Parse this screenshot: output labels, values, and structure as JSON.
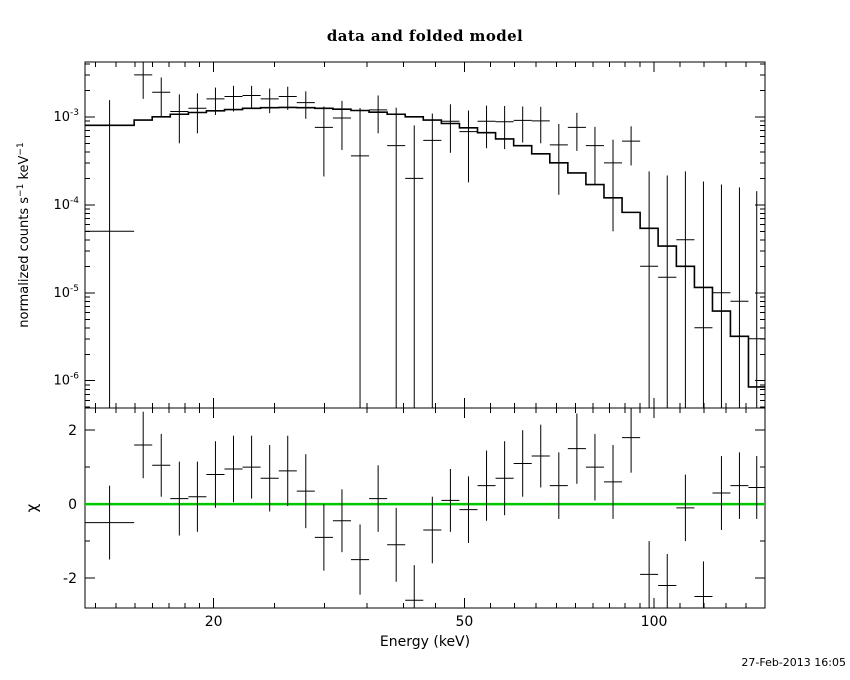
{
  "labels": {
    "ylabel_top_pre": "normalized counts s",
    "ylabel_top_sup1": "−1",
    "ylabel_top_mid": " keV",
    "ylabel_top_sup2": "−1",
    "ylabel_bottom": "χ"
  },
  "timestamp": "27-Feb-2013 16:05",
  "chart_data": {
    "type": "line",
    "title": "data and folded model",
    "xlabel": "Energy (keV)",
    "xscale": "log",
    "xlim": [
      12.5,
      150
    ],
    "x_major_ticks": [
      20,
      50,
      100
    ],
    "x_minor_ticks": [
      13,
      14,
      15,
      16,
      17,
      18,
      19,
      20,
      25,
      30,
      35,
      40,
      45,
      50,
      55,
      60,
      65,
      70,
      75,
      80,
      85,
      90,
      95,
      100,
      110,
      120,
      130,
      140,
      150
    ],
    "foreground_color": "#000000",
    "background_color": "#ffffff",
    "top": {
      "ylabel": "normalized counts s^-1 keV^-1",
      "yscale": "log",
      "ylim": [
        4.9e-07,
        0.0042
      ],
      "ytick_exponents": [
        -3,
        -4,
        -5,
        -6
      ]
    },
    "bottom": {
      "ylabel": "chi",
      "yscale": "linear",
      "ylim": [
        -2.81,
        2.6
      ],
      "yticks": [
        -2,
        0,
        2
      ],
      "zero_line_color": "#00c800"
    },
    "series_note": "model = folded model histogram (top); data±err = spectrum points (top); chi±chi_err = residuals (bottom)",
    "bins": {
      "edges_keV": [
        12.5,
        14.96,
        15.98,
        17.07,
        18.24,
        19.48,
        20.81,
        22.23,
        23.75,
        25.37,
        27.1,
        28.95,
        30.93,
        33.04,
        35.3,
        37.71,
        40.28,
        43.03,
        45.97,
        49.11,
        52.46,
        56.04,
        59.87,
        63.95,
        68.32,
        72.98,
        77.96,
        83.28,
        88.97,
        95.04,
        101.5,
        108.5,
        115.9,
        123.8,
        132.2,
        141.2,
        150.0
      ],
      "model": [
        0.0008,
        0.00092,
        0.001,
        0.00107,
        0.00112,
        0.00117,
        0.00121,
        0.00125,
        0.00127,
        0.00128,
        0.00127,
        0.00125,
        0.00122,
        0.00118,
        0.00113,
        0.00107,
        0.001,
        0.00092,
        0.00084,
        0.00075,
        0.00066,
        0.00056,
        0.00047,
        0.00038,
        0.0003,
        0.00023,
        0.00017,
        0.00012,
        8.2e-05,
        5.4e-05,
        3.4e-05,
        2e-05,
        1.15e-05,
        6.2e-06,
        3.2e-06,
        8.5e-07
      ],
      "data": [
        5e-05,
        0.003,
        0.0019,
        0.00115,
        0.00125,
        0.0016,
        0.0017,
        0.00175,
        0.0016,
        0.0017,
        0.00145,
        0.00076,
        0.00097,
        0.00036,
        0.0012,
        0.00047,
        0.0002,
        0.00054,
        0.00089,
        0.00068,
        0.00089,
        0.00088,
        0.00091,
        0.0009,
        0.00048,
        0.00076,
        0.00047,
        0.0003,
        0.00053,
        2e-05,
        1.5e-05,
        4e-05,
        4e-06,
        1e-05,
        8e-06,
        3e-06
      ],
      "err": [
        0.0015,
        0.0014,
        0.0009,
        0.00065,
        0.0006,
        0.00055,
        0.00055,
        0.0005,
        0.0005,
        0.0005,
        0.0005,
        0.00055,
        0.00055,
        0.0009,
        0.00055,
        0.0008,
        0.0006,
        0.00055,
        0.0005,
        0.0005,
        0.00045,
        0.00045,
        0.0004,
        0.0004,
        0.00035,
        0.00035,
        0.0003,
        0.00025,
        0.00025,
        0.00022,
        0.0002,
        0.0002,
        0.00018,
        0.00016,
        0.00015,
        0.00014
      ],
      "chi": [
        -0.5,
        1.6,
        1.05,
        0.15,
        0.2,
        0.8,
        0.95,
        1.0,
        0.7,
        0.9,
        0.35,
        -0.9,
        -0.45,
        -1.5,
        0.15,
        -1.1,
        -2.6,
        -0.7,
        0.1,
        -0.15,
        0.5,
        0.7,
        1.1,
        1.3,
        0.5,
        1.5,
        1.0,
        0.6,
        1.8,
        -1.9,
        -2.2,
        -0.1,
        -2.5,
        0.3,
        0.5,
        0.45
      ],
      "chi_err": [
        1.0,
        0.9,
        0.85,
        1.0,
        0.95,
        0.9,
        0.9,
        0.85,
        0.9,
        0.95,
        1.0,
        0.9,
        0.85,
        0.95,
        0.9,
        1.0,
        0.95,
        0.9,
        0.85,
        0.9,
        0.95,
        1.0,
        0.9,
        0.85,
        0.9,
        0.95,
        0.9,
        1.0,
        0.95,
        0.9,
        0.85,
        0.9,
        0.95,
        1.0,
        0.9,
        0.85
      ]
    },
    "timestamp": "27-Feb-2013 16:05"
  }
}
